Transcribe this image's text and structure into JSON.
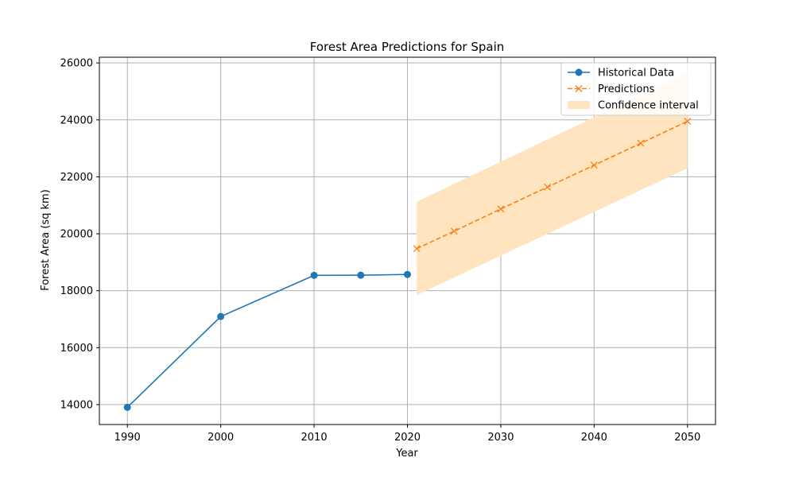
{
  "chart_data": {
    "type": "line",
    "title": "Forest Area Predictions for Spain",
    "xlabel": "Year",
    "ylabel": "Forest Area (sq km)",
    "xlim": [
      1987,
      2053
    ],
    "ylim": [
      13300,
      26200
    ],
    "xticks": [
      1990,
      2000,
      2010,
      2020,
      2030,
      2040,
      2050
    ],
    "yticks": [
      14000,
      16000,
      18000,
      20000,
      22000,
      24000,
      26000
    ],
    "grid": true,
    "legend_position": "top-right",
    "series": [
      {
        "name": "Historical Data",
        "color": "#1f77b4",
        "style": "solid",
        "marker": "circle",
        "x": [
          1990,
          2000,
          2010,
          2015,
          2020
        ],
        "y": [
          13905,
          17094,
          18540,
          18545,
          18572
        ]
      },
      {
        "name": "Predictions",
        "color": "#ff7f0e",
        "style": "dashed",
        "marker": "x",
        "x": [
          2021,
          2025,
          2030,
          2035,
          2040,
          2045,
          2050
        ],
        "y": [
          19480,
          20090,
          20870,
          21640,
          22410,
          23180,
          23950
        ]
      }
    ],
    "confidence_interval": {
      "name": "Confidence interval",
      "color": "#ffe5bf",
      "x": [
        2021,
        2050
      ],
      "lower": [
        17850,
        22300
      ],
      "upper": [
        21130,
        25650
      ]
    }
  }
}
